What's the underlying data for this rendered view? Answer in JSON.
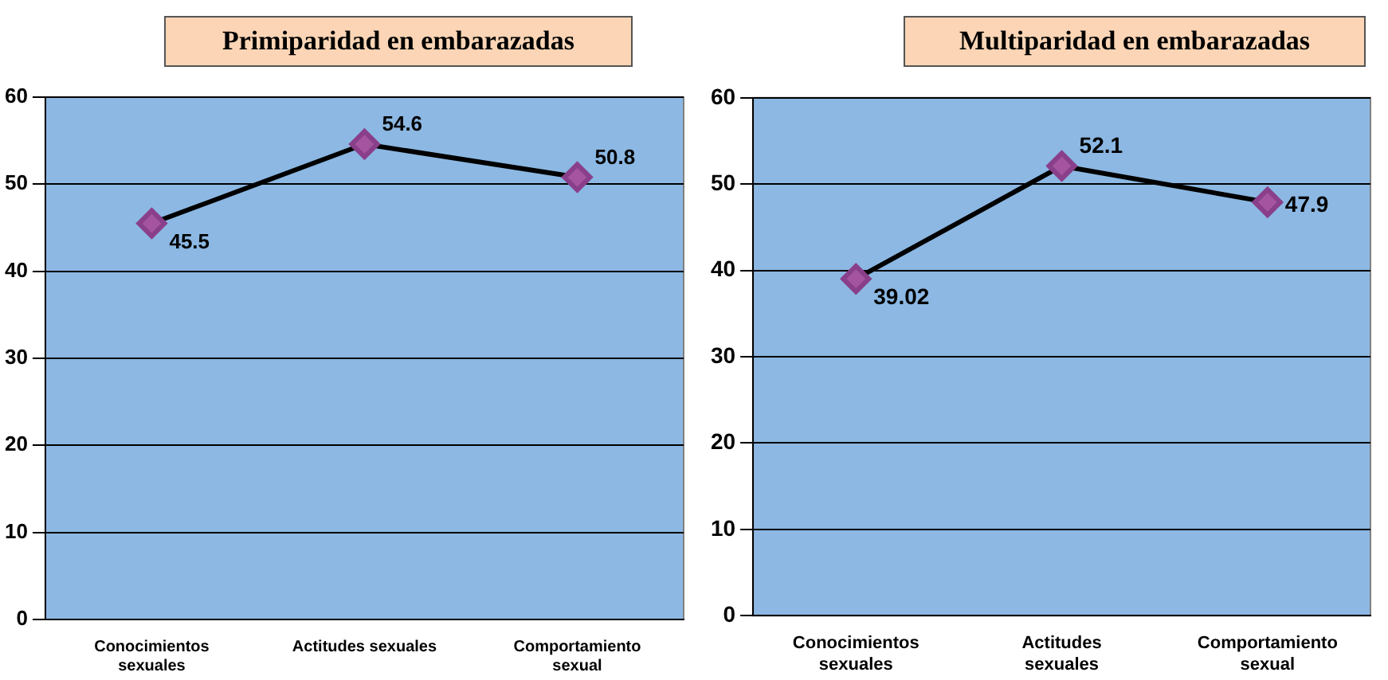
{
  "chart_data": [
    {
      "type": "line",
      "title": "Primiparidad en embarazadas",
      "categories": [
        "Conocimientos sexuales",
        "Actitudes sexuales",
        "Comportamiento sexual"
      ],
      "series": [
        {
          "color": "#000000",
          "values": [
            45.5,
            54.6,
            50.8
          ]
        }
      ],
      "ylim": [
        0,
        60
      ],
      "yticks": [
        0,
        10,
        20,
        30,
        40,
        50,
        60
      ],
      "grid": "y",
      "marker": "diamond",
      "line_style": "solid",
      "data_labels": true,
      "legend": false
    },
    {
      "type": "line",
      "title": "Multiparidad en embarazadas",
      "categories": [
        "Conocimientos sexuales",
        "Actitudes sexuales",
        "Comportamiento sexual"
      ],
      "series": [
        {
          "color": "#000000",
          "values": [
            39.02,
            52.1,
            47.9
          ]
        }
      ],
      "ylim": [
        0,
        60
      ],
      "yticks": [
        0,
        10,
        20,
        30,
        40,
        50,
        60
      ],
      "grid": "y",
      "marker": "diamond",
      "line_style": "solid",
      "data_labels": true,
      "legend": false
    }
  ]
}
